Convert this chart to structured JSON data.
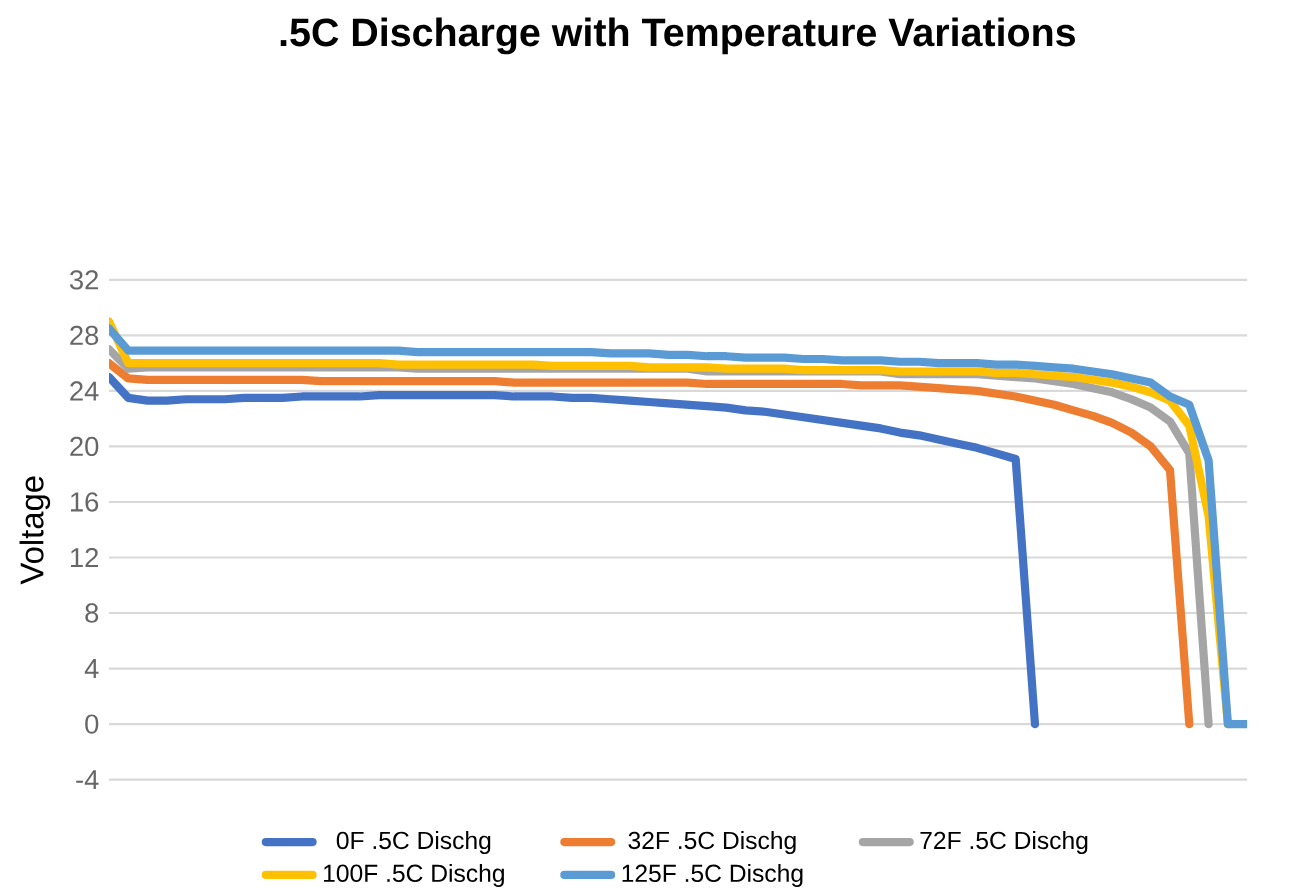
{
  "chart_data": {
    "type": "line",
    "title": ".5C Discharge with Temperature Variations",
    "ylabel": "Voltage",
    "categories": [
      null,
      null,
      null,
      null,
      null,
      null,
      null,
      null,
      null,
      null,
      null,
      null,
      null,
      null,
      null,
      null,
      null,
      null,
      null,
      null,
      null,
      null,
      null,
      null,
      null,
      null,
      null,
      null,
      null,
      null,
      null,
      null,
      null,
      null,
      null,
      null,
      null,
      null,
      null,
      null,
      null,
      null,
      null,
      null,
      null,
      null,
      null,
      null,
      null,
      null,
      null,
      null,
      null,
      null,
      null,
      null,
      null,
      null,
      null,
      null
    ],
    "series": [
      {
        "name": "0F .5C Dischg",
        "color": "#4472c4",
        "values": [
          25.0,
          23.5,
          23.3,
          23.3,
          23.4,
          23.4,
          23.4,
          23.5,
          23.5,
          23.5,
          23.6,
          23.6,
          23.6,
          23.6,
          23.7,
          23.7,
          23.7,
          23.7,
          23.7,
          23.7,
          23.7,
          23.6,
          23.6,
          23.6,
          23.5,
          23.5,
          23.4,
          23.3,
          23.2,
          23.1,
          23.0,
          22.9,
          22.8,
          22.6,
          22.5,
          22.3,
          22.1,
          21.9,
          21.7,
          21.5,
          21.3,
          21.0,
          20.8,
          20.5,
          20.2,
          19.9,
          19.5,
          19.1,
          0,
          null,
          null,
          null,
          null,
          null,
          null,
          null,
          null,
          null,
          null,
          null
        ]
      },
      {
        "name": "32F .5C Dischg",
        "color": "#ed7d31",
        "values": [
          26.0,
          24.9,
          24.8,
          24.8,
          24.8,
          24.8,
          24.8,
          24.8,
          24.8,
          24.8,
          24.8,
          24.7,
          24.7,
          24.7,
          24.7,
          24.7,
          24.7,
          24.7,
          24.7,
          24.7,
          24.7,
          24.6,
          24.6,
          24.6,
          24.6,
          24.6,
          24.6,
          24.6,
          24.6,
          24.6,
          24.6,
          24.5,
          24.5,
          24.5,
          24.5,
          24.5,
          24.5,
          24.5,
          24.5,
          24.4,
          24.4,
          24.4,
          24.3,
          24.2,
          24.1,
          24.0,
          23.8,
          23.6,
          23.3,
          23.0,
          22.6,
          22.2,
          21.7,
          21.0,
          20.0,
          18.3,
          0,
          null,
          null,
          null
        ]
      },
      {
        "name": "72F .5C Dischg",
        "color": "#a5a5a5",
        "values": [
          27.0,
          25.6,
          25.7,
          25.7,
          25.7,
          25.7,
          25.7,
          25.7,
          25.7,
          25.7,
          25.7,
          25.7,
          25.7,
          25.7,
          25.7,
          25.7,
          25.6,
          25.6,
          25.6,
          25.6,
          25.6,
          25.6,
          25.6,
          25.6,
          25.6,
          25.6,
          25.6,
          25.6,
          25.6,
          25.6,
          25.6,
          25.4,
          25.4,
          25.4,
          25.4,
          25.4,
          25.4,
          25.4,
          25.4,
          25.4,
          25.4,
          25.2,
          25.2,
          25.2,
          25.2,
          25.2,
          25.1,
          25.0,
          24.9,
          24.7,
          24.5,
          24.2,
          23.9,
          23.4,
          22.8,
          21.8,
          19.5,
          0,
          null,
          null
        ]
      },
      {
        "name": "100F .5C Dischg",
        "color": "#ffc000",
        "values": [
          29.0,
          26.0,
          26.0,
          26.0,
          26.0,
          26.0,
          26.0,
          26.0,
          26.0,
          26.0,
          26.0,
          26.0,
          26.0,
          26.0,
          26.0,
          25.9,
          25.9,
          25.9,
          25.9,
          25.9,
          25.9,
          25.9,
          25.9,
          25.8,
          25.8,
          25.8,
          25.8,
          25.8,
          25.7,
          25.7,
          25.7,
          25.7,
          25.6,
          25.6,
          25.6,
          25.6,
          25.5,
          25.5,
          25.5,
          25.5,
          25.5,
          25.4,
          25.4,
          25.4,
          25.4,
          25.4,
          25.3,
          25.3,
          25.2,
          25.1,
          25.0,
          24.8,
          24.6,
          24.3,
          23.9,
          23.3,
          21.5,
          15.0,
          0,
          null
        ]
      },
      {
        "name": "125F .5C Dischg",
        "color": "#5b9bd5",
        "values": [
          28.5,
          26.9,
          26.9,
          26.9,
          26.9,
          26.9,
          26.9,
          26.9,
          26.9,
          26.9,
          26.9,
          26.9,
          26.9,
          26.9,
          26.9,
          26.9,
          26.8,
          26.8,
          26.8,
          26.8,
          26.8,
          26.8,
          26.8,
          26.8,
          26.8,
          26.8,
          26.7,
          26.7,
          26.7,
          26.6,
          26.6,
          26.5,
          26.5,
          26.4,
          26.4,
          26.4,
          26.3,
          26.3,
          26.2,
          26.2,
          26.2,
          26.1,
          26.1,
          26.0,
          26.0,
          26.0,
          25.9,
          25.9,
          25.8,
          25.7,
          25.6,
          25.4,
          25.2,
          24.9,
          24.6,
          23.6,
          23.0,
          19.0,
          0,
          0
        ]
      }
    ],
    "ylim": [
      -4,
      32
    ],
    "yticks": [
      -4,
      0,
      4,
      8,
      12,
      16,
      20,
      24,
      28,
      32
    ],
    "grid": "y",
    "legend": "bottom",
    "marker": "none",
    "line_style": "solid"
  }
}
